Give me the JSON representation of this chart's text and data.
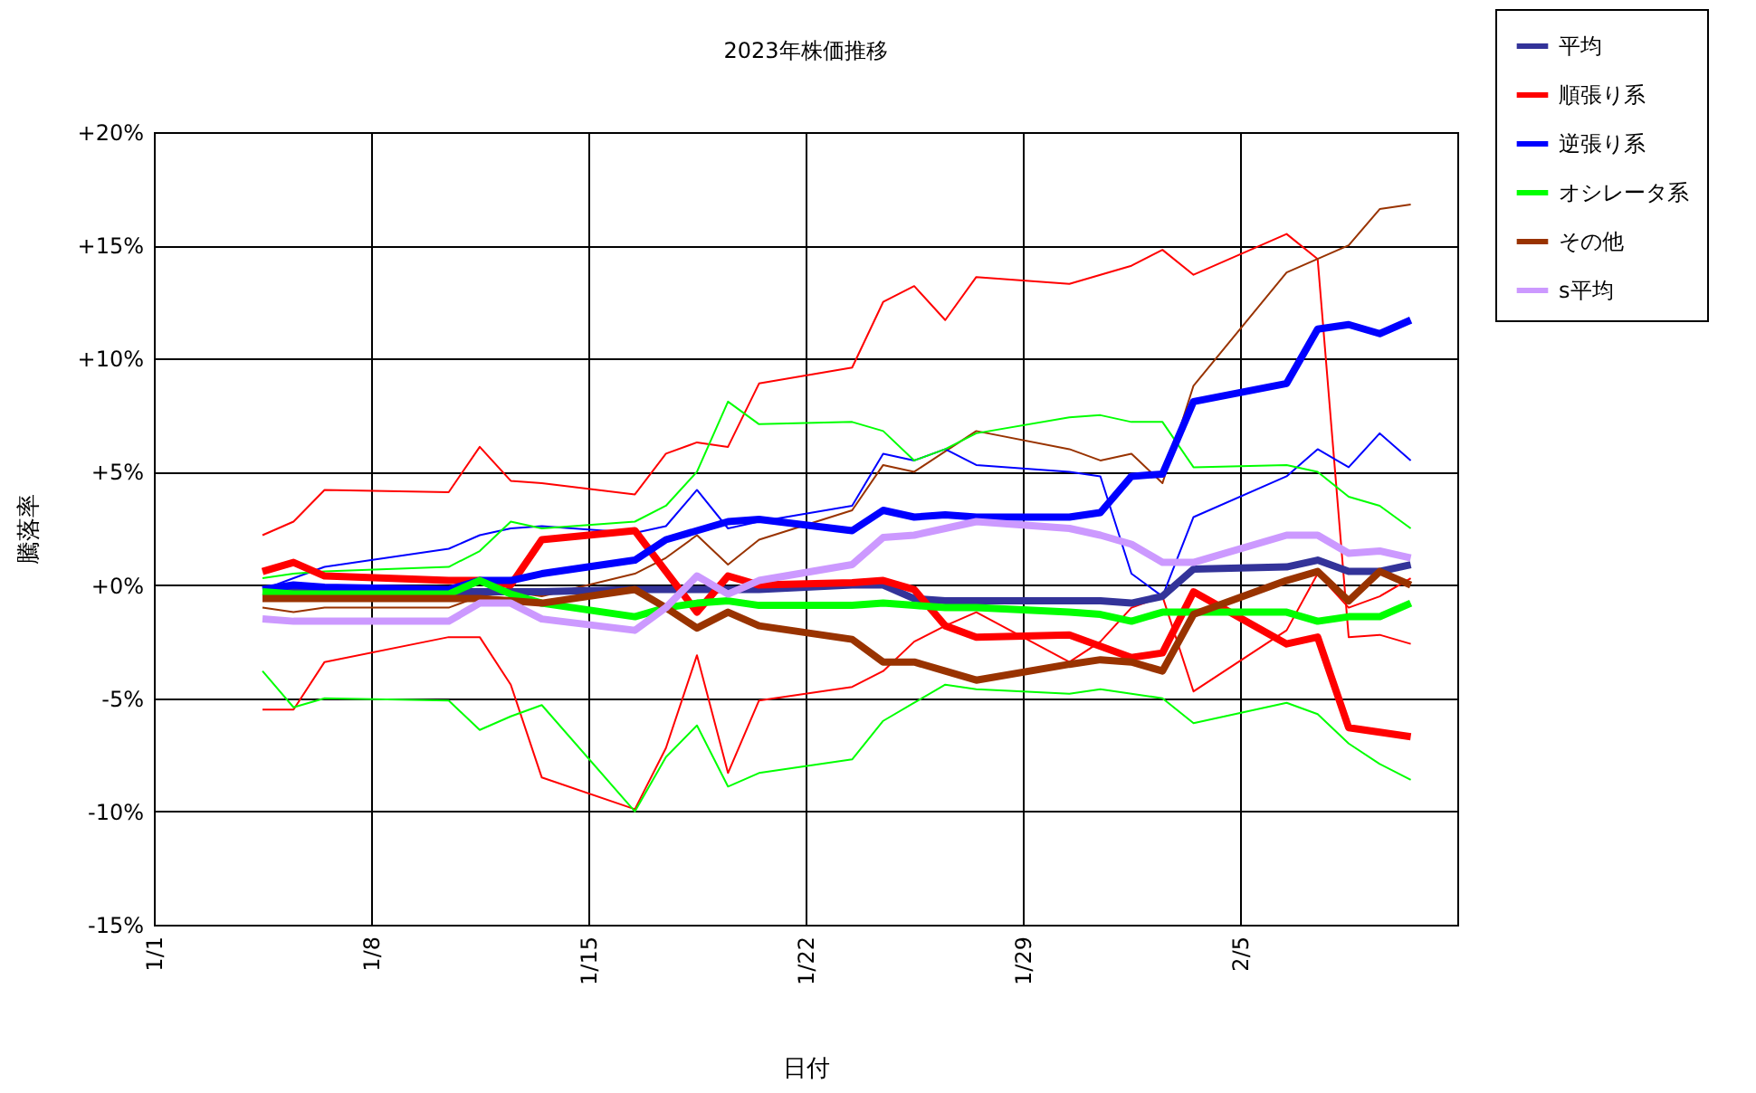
{
  "chart_data": {
    "type": "line",
    "title": "2023年株価推移",
    "xlabel": "日付",
    "ylabel": "騰落率",
    "x": [
      "--01-04T12:00",
      "--01-05T12:00",
      "--01-06T12:00",
      "--01-10T12:00",
      "--01-11T12:00",
      "--01-12T12:00",
      "--01-13T12:00",
      "--01-16T12:00",
      "--01-17T12:00",
      "--01-18T12:00",
      "--01-19T12:00",
      "--01-20T12:00",
      "--01-23T12:00",
      "--01-24T12:00",
      "--01-25T12:00",
      "--01-26T12:00",
      "--01-27T12:00",
      "--01-30T12:00",
      "--01-31T12:00",
      "--02-01T12:00",
      "--02-02T12:00",
      "--02-03T12:00",
      "--02-06T12:00",
      "--02-07T12:00",
      "--02-08T12:00",
      "--02-09T12:00",
      "--02-10T12:00"
    ],
    "xlim": [
      "--01-01",
      "--02-12"
    ],
    "xticks": [
      {
        "value": "--01-01",
        "label": "1/1"
      },
      {
        "value": "--01-08",
        "label": "1/8"
      },
      {
        "value": "--01-15",
        "label": "1/15"
      },
      {
        "value": "--01-22",
        "label": "1/22"
      },
      {
        "value": "--01-29",
        "label": "1/29"
      },
      {
        "value": "--02-05",
        "label": "2/5"
      }
    ],
    "ylim": [
      -15,
      20
    ],
    "yticks": [
      {
        "value": 20,
        "label": "+20%"
      },
      {
        "value": 15,
        "label": "+15%"
      },
      {
        "value": 10,
        "label": "+10%"
      },
      {
        "value": 5,
        "label": "+5%"
      },
      {
        "value": 0,
        "label": "+0%"
      },
      {
        "value": -5,
        "label": "-5%"
      },
      {
        "value": -10,
        "label": "-10%"
      },
      {
        "value": -15,
        "label": "-15%"
      }
    ],
    "grid": true,
    "legend": "top right",
    "line_style": "solid",
    "series": [
      {
        "color": "#ff0000",
        "values": [
          2.2,
          2.8,
          4.2,
          4.1,
          6.1,
          4.6,
          4.5,
          4.0,
          5.8,
          6.3,
          6.1,
          8.9,
          9.6,
          12.5,
          13.2,
          11.7,
          13.6,
          13.3,
          13.7,
          14.1,
          14.8,
          13.7,
          15.5,
          14.4,
          -2.3,
          -2.2,
          -2.6
        ]
      },
      {
        "color": "#ff0000",
        "values": [
          -5.5,
          -5.5,
          -3.4,
          -2.3,
          -2.3,
          -4.4,
          -8.5,
          -9.9,
          -7.2,
          -3.1,
          -8.3,
          -5.1,
          -4.5,
          -3.8,
          -2.5,
          -1.8,
          -1.2,
          -3.4,
          -2.5,
          -1.0,
          -0.5,
          -4.7,
          -2.0,
          0.5,
          -1.0,
          -0.5,
          0.3
        ]
      },
      {
        "color": "#993300",
        "values": [
          -1.0,
          -1.2,
          -1.0,
          -1.0,
          -0.5,
          -0.3,
          -0.5,
          0.5,
          1.2,
          2.2,
          0.9,
          2.0,
          3.3,
          5.3,
          5.0,
          5.9,
          6.8,
          6.0,
          5.5,
          5.8,
          4.5,
          8.8,
          13.8,
          14.4,
          15.0,
          16.6,
          16.8
        ]
      },
      {
        "color": "#0000ff",
        "values": [
          -0.2,
          0.3,
          0.8,
          1.6,
          2.2,
          2.5,
          2.6,
          2.3,
          2.6,
          4.2,
          2.5,
          2.8,
          3.5,
          5.8,
          5.5,
          6.0,
          5.3,
          5.0,
          4.8,
          0.5,
          -0.5,
          3.0,
          4.8,
          6.0,
          5.2,
          6.7,
          5.5
        ]
      },
      {
        "color": "#00ff00",
        "values": [
          0.3,
          0.5,
          0.6,
          0.8,
          1.5,
          2.8,
          2.5,
          2.8,
          3.5,
          5.0,
          8.1,
          7.1,
          7.2,
          6.8,
          5.5,
          6.0,
          6.7,
          7.4,
          7.5,
          7.2,
          7.2,
          5.2,
          5.3,
          5.0,
          3.9,
          3.5,
          2.5
        ]
      },
      {
        "color": "#00ff00",
        "values": [
          -3.8,
          -5.4,
          -5.0,
          -5.1,
          -6.4,
          -5.8,
          -5.3,
          -10.0,
          -7.6,
          -6.2,
          -8.9,
          -8.3,
          -7.7,
          -6.0,
          -5.2,
          -4.4,
          -4.6,
          -4.8,
          -4.6,
          -4.8,
          -5.0,
          -6.1,
          -5.2,
          -5.7,
          -7.0,
          -7.9,
          -8.6
        ]
      },
      {
        "name": "平均",
        "color": "#333399",
        "values": [
          -0.3,
          -0.3,
          -0.3,
          -0.3,
          -0.3,
          -0.3,
          -0.3,
          -0.2,
          -0.2,
          -0.2,
          -0.2,
          -0.2,
          0.0,
          0.0,
          -0.6,
          -0.7,
          -0.7,
          -0.7,
          -0.7,
          -0.8,
          -0.5,
          0.7,
          0.8,
          1.1,
          0.6,
          0.6,
          0.9
        ]
      },
      {
        "name": "順張り系",
        "color": "#ff0000",
        "values": [
          0.6,
          1.0,
          0.4,
          0.2,
          0.2,
          0.0,
          2.0,
          2.4,
          0.6,
          -1.2,
          0.4,
          0.0,
          0.1,
          0.2,
          -0.2,
          -1.8,
          -2.3,
          -2.2,
          -2.7,
          -3.2,
          -3.0,
          -0.3,
          -2.6,
          -2.3,
          -6.3,
          -6.5,
          -6.7
        ]
      },
      {
        "name": "逆張り系",
        "color": "#0000ff",
        "values": [
          -0.2,
          0.0,
          -0.1,
          -0.2,
          0.2,
          0.2,
          0.5,
          1.1,
          2.0,
          2.4,
          2.8,
          2.9,
          2.4,
          3.3,
          3.0,
          3.1,
          3.0,
          3.0,
          3.2,
          4.8,
          4.9,
          8.1,
          8.9,
          11.3,
          11.5,
          11.1,
          11.7
        ]
      },
      {
        "name": "オシレータ系",
        "color": "#00ff00",
        "values": [
          -0.3,
          -0.4,
          -0.4,
          -0.4,
          0.2,
          -0.4,
          -0.8,
          -1.4,
          -1.0,
          -0.8,
          -0.7,
          -0.9,
          -0.9,
          -0.8,
          -0.9,
          -1.0,
          -1.0,
          -1.2,
          -1.3,
          -1.6,
          -1.2,
          -1.2,
          -1.2,
          -1.6,
          -1.4,
          -1.4,
          -0.8
        ]
      },
      {
        "name": "その他",
        "color": "#993300",
        "values": [
          -0.6,
          -0.6,
          -0.6,
          -0.6,
          -0.6,
          -0.7,
          -0.8,
          -0.2,
          -1.0,
          -1.9,
          -1.2,
          -1.8,
          -2.4,
          -3.4,
          -3.4,
          -3.8,
          -4.2,
          -3.5,
          -3.3,
          -3.4,
          -3.8,
          -1.3,
          0.2,
          0.6,
          -0.7,
          0.6,
          0.0
        ]
      },
      {
        "name": "s平均",
        "color": "#cc99ff",
        "values": [
          -1.5,
          -1.6,
          -1.6,
          -1.6,
          -0.8,
          -0.8,
          -1.5,
          -2.0,
          -1.0,
          0.4,
          -0.4,
          0.2,
          0.9,
          2.1,
          2.2,
          2.5,
          2.8,
          2.5,
          2.2,
          1.8,
          1.0,
          1.0,
          2.2,
          2.2,
          1.4,
          1.5,
          1.2
        ]
      }
    ]
  }
}
